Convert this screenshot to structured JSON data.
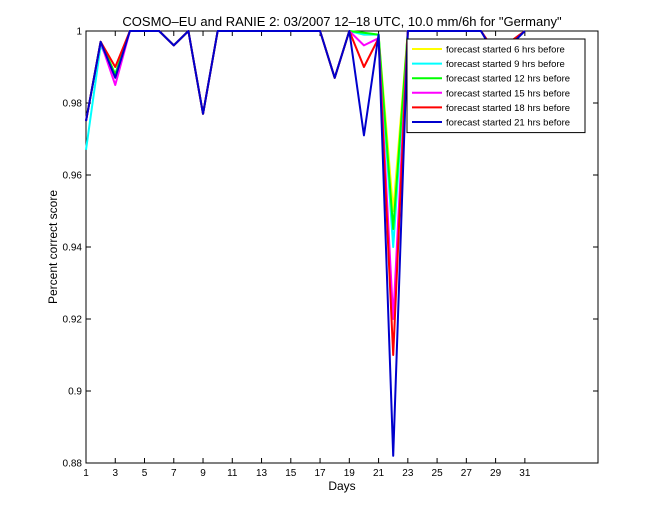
{
  "chart_data": {
    "type": "line",
    "title": "COSMO–EU and RANIE 2: 03/2007 12–18 UTC, 10.0 mm/6h for \"Germany\"",
    "xlabel": "Days",
    "ylabel": "Percent correct score",
    "xlim": [
      1,
      36
    ],
    "ylim": [
      0.88,
      1.0
    ],
    "x_ticks": [
      1,
      3,
      5,
      7,
      9,
      11,
      13,
      15,
      17,
      19,
      21,
      23,
      25,
      27,
      29,
      31
    ],
    "y_ticks": [
      0.88,
      0.9,
      0.92,
      0.94,
      0.96,
      0.98,
      1.0
    ],
    "y_tick_labels": [
      "0.88",
      "0.9",
      "0.92",
      "0.94",
      "0.96",
      "0.98",
      "1"
    ],
    "grid": false,
    "legend_position": "top-right",
    "x": [
      1,
      2,
      3,
      4,
      5,
      6,
      7,
      8,
      9,
      10,
      11,
      12,
      13,
      14,
      15,
      16,
      17,
      18,
      19,
      20,
      21,
      22,
      23,
      24,
      25,
      26,
      27,
      28,
      29,
      30,
      31
    ],
    "series": [
      {
        "name": "forecast started 6 hrs before",
        "color": "#ffff00",
        "values": [
          0.975,
          0.997,
          0.988,
          1.0,
          1.0,
          1.0,
          0.996,
          1.0,
          0.977,
          1.0,
          1.0,
          1.0,
          1.0,
          1.0,
          1.0,
          1.0,
          1.0,
          0.987,
          1.0,
          0.999,
          0.999,
          0.95,
          1.0,
          1.0,
          1.0,
          1.0,
          1.0,
          1.0,
          0.994,
          0.997,
          1.0
        ]
      },
      {
        "name": "forecast started 9 hrs before",
        "color": "#00ffff",
        "values": [
          0.967,
          0.996,
          0.988,
          1.0,
          1.0,
          1.0,
          0.996,
          1.0,
          0.977,
          1.0,
          1.0,
          1.0,
          1.0,
          1.0,
          1.0,
          1.0,
          1.0,
          0.987,
          1.0,
          0.999,
          0.999,
          0.94,
          1.0,
          1.0,
          1.0,
          1.0,
          1.0,
          1.0,
          0.994,
          0.997,
          1.0
        ]
      },
      {
        "name": "forecast started 12 hrs before",
        "color": "#00ff00",
        "values": [
          0.975,
          0.997,
          0.988,
          1.0,
          1.0,
          1.0,
          0.996,
          1.0,
          0.977,
          1.0,
          1.0,
          1.0,
          1.0,
          1.0,
          1.0,
          1.0,
          1.0,
          0.987,
          1.0,
          0.9995,
          0.999,
          0.945,
          1.0,
          1.0,
          1.0,
          1.0,
          1.0,
          1.0,
          0.994,
          0.997,
          1.0
        ]
      },
      {
        "name": "forecast started 15 hrs before",
        "color": "#ff00ff",
        "values": [
          0.975,
          0.997,
          0.985,
          1.0,
          1.0,
          1.0,
          0.996,
          1.0,
          0.977,
          1.0,
          1.0,
          1.0,
          1.0,
          1.0,
          1.0,
          1.0,
          1.0,
          0.987,
          1.0,
          0.996,
          0.998,
          0.92,
          1.0,
          1.0,
          1.0,
          1.0,
          1.0,
          1.0,
          0.994,
          0.997,
          1.0
        ]
      },
      {
        "name": "forecast started 18 hrs before",
        "color": "#ff0000",
        "values": [
          0.975,
          0.997,
          0.99,
          1.0,
          1.0,
          1.0,
          0.996,
          1.0,
          0.977,
          1.0,
          1.0,
          1.0,
          1.0,
          1.0,
          1.0,
          1.0,
          1.0,
          0.987,
          1.0,
          0.99,
          0.998,
          0.91,
          1.0,
          1.0,
          1.0,
          1.0,
          1.0,
          1.0,
          0.994,
          0.997,
          1.0
        ]
      },
      {
        "name": "forecast started 21 hrs before",
        "color": "#0000cd",
        "values": [
          0.975,
          0.997,
          0.987,
          1.0,
          1.0,
          1.0,
          0.996,
          1.0,
          0.977,
          1.0,
          1.0,
          1.0,
          1.0,
          1.0,
          1.0,
          1.0,
          1.0,
          0.987,
          1.0,
          0.971,
          0.999,
          0.882,
          1.0,
          1.0,
          1.0,
          1.0,
          1.0,
          1.0,
          0.993,
          0.996,
          1.0
        ]
      }
    ]
  }
}
